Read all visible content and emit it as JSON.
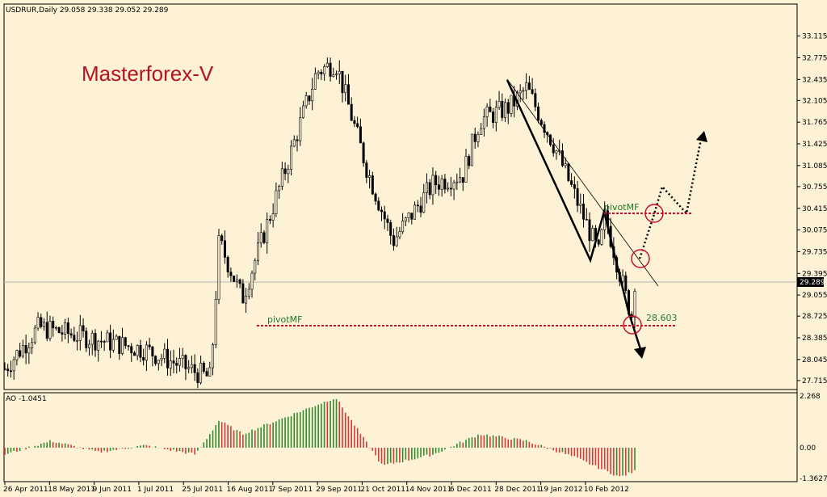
{
  "header": {
    "symbol_label": "USDRUR,Daily  29.058 29.338 29.052 29.289",
    "brand": "Masterforex-V",
    "ao_label": "AO -1.0451"
  },
  "colors": {
    "background": "#fdf1d6",
    "candle": "#000000",
    "pivot_line": "#c8102e",
    "pivot_text": "#1f7a2c",
    "brand": "#b3141d",
    "ao_up": "#2e8b2e",
    "ao_down": "#d43a3a",
    "current_price_box": "#000000"
  },
  "chart_data": [
    {
      "type": "candlestick",
      "name": "USDRUR Daily",
      "ylim": [
        27.6,
        33.3
      ],
      "y_ticks": [
        "33.115",
        "32.775",
        "32.435",
        "32.105",
        "31.765",
        "31.425",
        "31.085",
        "30.755",
        "30.415",
        "30.075",
        "29.735",
        "29.395",
        "29.055",
        "28.725",
        "28.385",
        "28.045",
        "27.715"
      ],
      "current_price": "29.289",
      "x_ticks": [
        "26 Apr 2011",
        "18 May 2011",
        "9 Jun 2011",
        "1 Jul 2011",
        "25 Jul 2011",
        "16 Aug 2011",
        "7 Sep 2011",
        "29 Sep 2011",
        "21 Oct 2011",
        "14 Nov 2011",
        "6 Dec 2011",
        "28 Dec 2011",
        "19 Jan 2012",
        "10 Feb 2012"
      ],
      "swing_points": [
        {
          "date": "26 Apr 2011",
          "close": 27.9
        },
        {
          "date": "12 May 2011",
          "close": 28.55
        },
        {
          "date": "1 Jul 2011",
          "close": 28.2
        },
        {
          "date": "1 Aug 2011",
          "close": 27.75
        },
        {
          "date": "5 Aug 2011",
          "close": 29.9
        },
        {
          "date": "16 Aug 2011",
          "close": 29.0
        },
        {
          "date": "7 Sep 2011",
          "close": 31.2
        },
        {
          "date": "20 Sep 2011",
          "close": 32.55
        },
        {
          "date": "29 Sep 2011",
          "close": 32.7
        },
        {
          "date": "14 Oct 2011",
          "close": 31.0
        },
        {
          "date": "26 Oct 2011",
          "close": 29.9
        },
        {
          "date": "14 Nov 2011",
          "close": 30.8
        },
        {
          "date": "28 Nov 2011",
          "close": 30.95
        },
        {
          "date": "6 Dec 2011",
          "close": 31.8
        },
        {
          "date": "20 Dec 2011",
          "close": 32.0
        },
        {
          "date": "28 Dec 2011",
          "close": 32.3
        },
        {
          "date": "10 Jan 2012",
          "close": 31.4
        },
        {
          "date": "31 Jan 2012",
          "close": 29.7
        },
        {
          "date": "3 Feb 2012",
          "close": 30.3
        },
        {
          "date": "13 Feb 2012",
          "close": 29.0
        },
        {
          "date": "16 Feb 2012",
          "close": 28.7
        },
        {
          "date": "17 Feb 2012",
          "close": 29.289
        }
      ],
      "annotations": [
        {
          "type": "pivot",
          "label": "pivotMF",
          "value": 28.72
        },
        {
          "type": "pivot",
          "label": "pivotMF",
          "value": 30.33
        },
        {
          "type": "label",
          "label": "28.603"
        }
      ]
    },
    {
      "type": "bar",
      "name": "AO",
      "ylim": [
        -1.3627,
        2.268
      ],
      "y_ticks": [
        "2.268",
        "0.00",
        "-1.3627"
      ],
      "last_value": "-1.0451",
      "swing_points": [
        {
          "date": "26 Apr 2011",
          "value": -0.3
        },
        {
          "date": "18 May 2011",
          "value": 0.3
        },
        {
          "date": "9 Jun 2011",
          "value": -0.2
        },
        {
          "date": "1 Jul 2011",
          "value": 0.1
        },
        {
          "date": "25 Jul 2011",
          "value": -0.3
        },
        {
          "date": "5 Aug 2011",
          "value": 1.2
        },
        {
          "date": "16 Aug 2011",
          "value": 0.6
        },
        {
          "date": "29 Sep 2011",
          "value": 2.2
        },
        {
          "date": "21 Oct 2011",
          "value": -0.8
        },
        {
          "date": "14 Nov 2011",
          "value": -0.3
        },
        {
          "date": "6 Dec 2011",
          "value": 0.6
        },
        {
          "date": "28 Dec 2011",
          "value": 0.3
        },
        {
          "date": "19 Jan 2012",
          "value": -0.4
        },
        {
          "date": "10 Feb 2012",
          "value": -1.3
        },
        {
          "date": "17 Feb 2012",
          "value": -1.0451
        }
      ]
    }
  ]
}
